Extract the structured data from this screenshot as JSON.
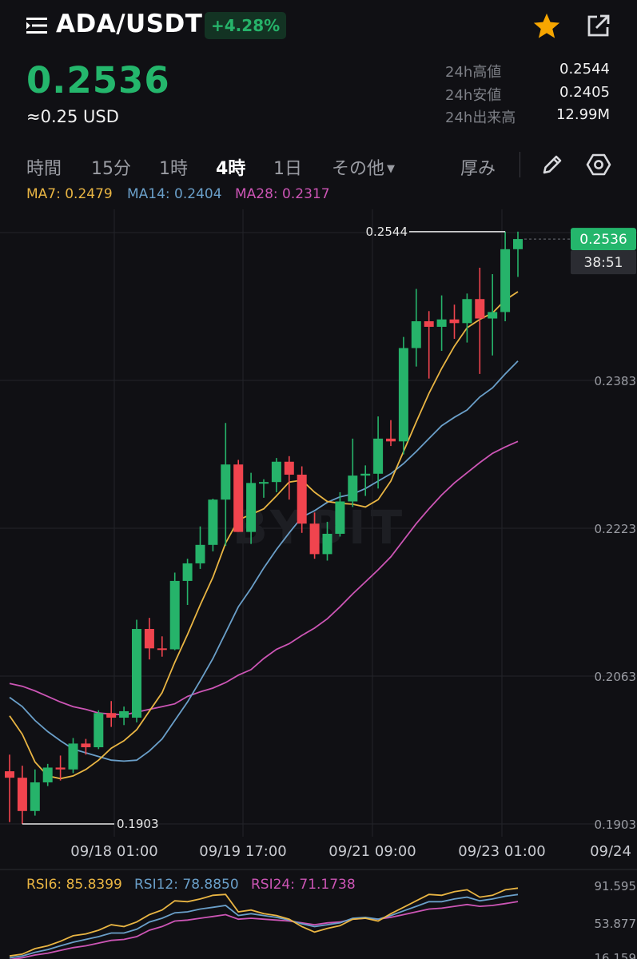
{
  "header": {
    "pair": "ADA/USDT",
    "change": "+4.28%",
    "icons": [
      "menu-icon",
      "star-icon",
      "share-icon"
    ]
  },
  "price": {
    "last": "0.2536",
    "usd": "≈0.25 USD"
  },
  "stats": [
    {
      "label": "24h高値",
      "value": "0.2544"
    },
    {
      "label": "24h安値",
      "value": "0.2405"
    },
    {
      "label": "24h出来高",
      "value": "12.99M"
    }
  ],
  "tabs": {
    "items": [
      "時間",
      "15分",
      "1時",
      "4時",
      "1日",
      "その他"
    ],
    "active": "4時",
    "depth": "厚み"
  },
  "indicators": {
    "ma7": "MA7: 0.2479",
    "ma14": "MA14: 0.2404",
    "ma28": "MA28: 0.2317",
    "rsi6": "RSI6: 85.8399",
    "rsi12": "RSI12: 78.8850",
    "rsi24": "RSI24: 71.1738"
  },
  "chart_data": {
    "type": "candlestick",
    "pair": "ADA/USDT",
    "interval": "4時",
    "y_ticks": [
      "0.2383",
      "0.2223",
      "0.2063",
      "0.1903"
    ],
    "x_ticks": [
      "09/18 01:00",
      "09/19 17:00",
      "09/21 09:00",
      "09/23 01:00",
      "09/24"
    ],
    "current_price_tag": "0.2536",
    "countdown": "38:51",
    "high_marker": "0.2544",
    "low_marker": "0.1903",
    "rsi_ticks": [
      "91.595",
      "53.877",
      "16.159"
    ],
    "watermark": "BYBIT",
    "colors": {
      "up": "#26b36a",
      "down": "#f0444e",
      "ma7": "#e9b543",
      "ma14": "#6a9fc9",
      "ma28": "#cc55b5",
      "bg": "#101014"
    },
    "candles": [
      {
        "o": 0.196,
        "h": 0.1978,
        "l": 0.1905,
        "c": 0.1953
      },
      {
        "o": 0.1953,
        "h": 0.1966,
        "l": 0.1903,
        "c": 0.1917
      },
      {
        "o": 0.1917,
        "h": 0.1962,
        "l": 0.1912,
        "c": 0.1948
      },
      {
        "o": 0.1948,
        "h": 0.1968,
        "l": 0.1944,
        "c": 0.1964
      },
      {
        "o": 0.1964,
        "h": 0.1977,
        "l": 0.195,
        "c": 0.1962
      },
      {
        "o": 0.1962,
        "h": 0.1996,
        "l": 0.1958,
        "c": 0.199
      },
      {
        "o": 0.199,
        "h": 0.1995,
        "l": 0.1978,
        "c": 0.1986
      },
      {
        "o": 0.1986,
        "h": 0.2026,
        "l": 0.1984,
        "c": 0.2023
      },
      {
        "o": 0.2023,
        "h": 0.2036,
        "l": 0.2008,
        "c": 0.2018
      },
      {
        "o": 0.2018,
        "h": 0.203,
        "l": 0.201,
        "c": 0.2025
      },
      {
        "o": 0.2018,
        "h": 0.2124,
        "l": 0.2013,
        "c": 0.2114
      },
      {
        "o": 0.2114,
        "h": 0.2126,
        "l": 0.2081,
        "c": 0.2093
      },
      {
        "o": 0.2093,
        "h": 0.2106,
        "l": 0.2084,
        "c": 0.2092
      },
      {
        "o": 0.2092,
        "h": 0.2175,
        "l": 0.2091,
        "c": 0.2166
      },
      {
        "o": 0.2166,
        "h": 0.219,
        "l": 0.214,
        "c": 0.2185
      },
      {
        "o": 0.2185,
        "h": 0.2225,
        "l": 0.2179,
        "c": 0.2205
      },
      {
        "o": 0.2205,
        "h": 0.2255,
        "l": 0.2198,
        "c": 0.2254
      },
      {
        "o": 0.2254,
        "h": 0.2337,
        "l": 0.2204,
        "c": 0.2292
      },
      {
        "o": 0.2292,
        "h": 0.2297,
        "l": 0.2219,
        "c": 0.2219
      },
      {
        "o": 0.2219,
        "h": 0.2283,
        "l": 0.2206,
        "c": 0.2272
      },
      {
        "o": 0.2272,
        "h": 0.2276,
        "l": 0.2256,
        "c": 0.2273
      },
      {
        "o": 0.2273,
        "h": 0.2299,
        "l": 0.2262,
        "c": 0.2295
      },
      {
        "o": 0.2295,
        "h": 0.2301,
        "l": 0.2254,
        "c": 0.2281
      },
      {
        "o": 0.2281,
        "h": 0.229,
        "l": 0.2218,
        "c": 0.2228
      },
      {
        "o": 0.2228,
        "h": 0.224,
        "l": 0.219,
        "c": 0.2195
      },
      {
        "o": 0.2195,
        "h": 0.223,
        "l": 0.2188,
        "c": 0.2217
      },
      {
        "o": 0.2217,
        "h": 0.2262,
        "l": 0.2214,
        "c": 0.2252
      },
      {
        "o": 0.2252,
        "h": 0.232,
        "l": 0.2246,
        "c": 0.228
      },
      {
        "o": 0.228,
        "h": 0.2291,
        "l": 0.2258,
        "c": 0.2282
      },
      {
        "o": 0.2282,
        "h": 0.2344,
        "l": 0.2266,
        "c": 0.232
      },
      {
        "o": 0.232,
        "h": 0.234,
        "l": 0.2312,
        "c": 0.2317
      },
      {
        "o": 0.2317,
        "h": 0.243,
        "l": 0.2303,
        "c": 0.2418
      },
      {
        "o": 0.2418,
        "h": 0.2482,
        "l": 0.2398,
        "c": 0.2447
      },
      {
        "o": 0.2447,
        "h": 0.2458,
        "l": 0.2385,
        "c": 0.2441
      },
      {
        "o": 0.2441,
        "h": 0.2475,
        "l": 0.2415,
        "c": 0.2449
      },
      {
        "o": 0.2449,
        "h": 0.2465,
        "l": 0.2428,
        "c": 0.2445
      },
      {
        "o": 0.2445,
        "h": 0.2477,
        "l": 0.2424,
        "c": 0.2471
      },
      {
        "o": 0.2471,
        "h": 0.2505,
        "l": 0.239,
        "c": 0.245
      },
      {
        "o": 0.245,
        "h": 0.2498,
        "l": 0.241,
        "c": 0.2457
      },
      {
        "o": 0.2457,
        "h": 0.2544,
        "l": 0.2447,
        "c": 0.2525
      },
      {
        "o": 0.2525,
        "h": 0.2544,
        "l": 0.2495,
        "c": 0.2536
      }
    ],
    "ma7_line": [
      0.202,
      0.2,
      0.197,
      0.1955,
      0.1952,
      0.1955,
      0.1962,
      0.1972,
      0.1985,
      0.1993,
      0.2005,
      0.2025,
      0.2045,
      0.2078,
      0.2108,
      0.214,
      0.217,
      0.2207,
      0.2232,
      0.2238,
      0.2244,
      0.2258,
      0.2273,
      0.2275,
      0.2262,
      0.2252,
      0.225,
      0.2249,
      0.2246,
      0.2254,
      0.2274,
      0.2306,
      0.2338,
      0.2369,
      0.2396,
      0.242,
      0.244,
      0.2449,
      0.2456,
      0.247,
      0.2479
    ],
    "ma14_line": [
      0.204,
      0.203,
      0.2015,
      0.2003,
      0.1993,
      0.1984,
      0.198,
      0.1976,
      0.1972,
      0.1971,
      0.1972,
      0.1982,
      0.1995,
      0.2015,
      0.2035,
      0.2058,
      0.2082,
      0.211,
      0.2138,
      0.2158,
      0.218,
      0.22,
      0.2218,
      0.2235,
      0.2242,
      0.2251,
      0.2257,
      0.226,
      0.2266,
      0.2274,
      0.2282,
      0.2293,
      0.2306,
      0.232,
      0.2334,
      0.2343,
      0.2351,
      0.2365,
      0.2375,
      0.239,
      0.2404
    ],
    "ma28_line": [
      0.2055,
      0.2052,
      0.2047,
      0.2041,
      0.2035,
      0.203,
      0.2027,
      0.2023,
      0.2022,
      0.2021,
      0.2024,
      0.2027,
      0.203,
      0.2033,
      0.2041,
      0.2046,
      0.205,
      0.2056,
      0.2064,
      0.207,
      0.2082,
      0.2092,
      0.2098,
      0.2107,
      0.2115,
      0.2125,
      0.2138,
      0.2152,
      0.2165,
      0.2178,
      0.2192,
      0.221,
      0.2228,
      0.2244,
      0.2259,
      0.2272,
      0.2283,
      0.2294,
      0.2304,
      0.2311,
      0.2317
    ],
    "rsi6_line": [
      12,
      14,
      20,
      23,
      28,
      34,
      36,
      40,
      46,
      44,
      49,
      57,
      62,
      72,
      71,
      74,
      78,
      79,
      60,
      62,
      58,
      56,
      52,
      44,
      38,
      42,
      45,
      52,
      53,
      50,
      58,
      65,
      72,
      79,
      78,
      82,
      84,
      76,
      78,
      84,
      85.8
    ],
    "rsi12_line": [
      10,
      12,
      16,
      19,
      23,
      27,
      30,
      33,
      37,
      37,
      41,
      49,
      53,
      59,
      60,
      63,
      65,
      67,
      56,
      58,
      56,
      54,
      51,
      47,
      44,
      46,
      48,
      53,
      54,
      52,
      56,
      61,
      66,
      71,
      71,
      74,
      76,
      72,
      74,
      77,
      78.9
    ],
    "rsi24_line": [
      8,
      10,
      13,
      15,
      18,
      21,
      23,
      26,
      29,
      30,
      33,
      40,
      44,
      50,
      51,
      53,
      55,
      57,
      52,
      53,
      52,
      51,
      50,
      48,
      46,
      48,
      49,
      52,
      53,
      52,
      54,
      57,
      60,
      63,
      64,
      66,
      68,
      66,
      67,
      69,
      71.2
    ]
  }
}
